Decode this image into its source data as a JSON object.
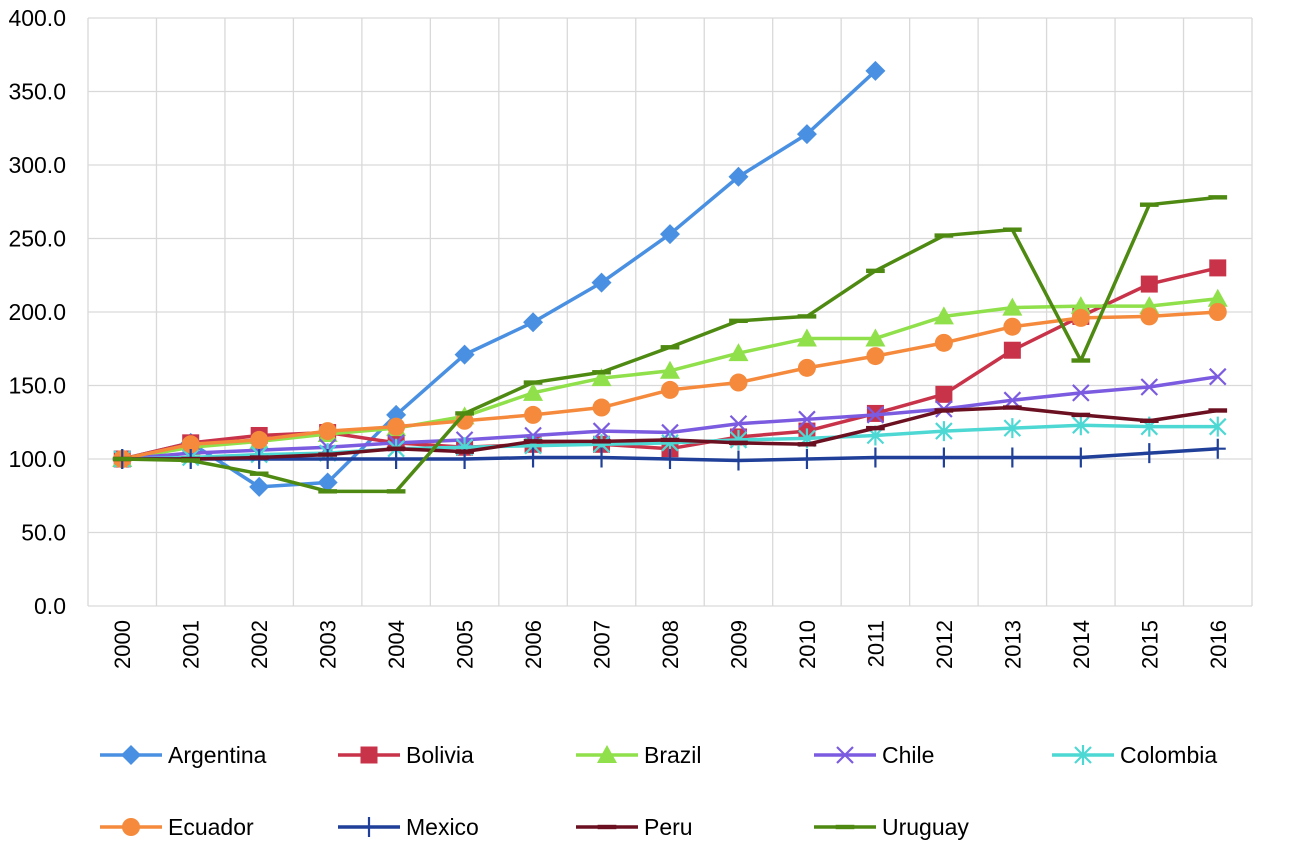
{
  "chart_data": {
    "type": "line",
    "title": "",
    "xlabel": "",
    "ylabel": "",
    "ylim": [
      0,
      400
    ],
    "yticks": [
      "0.0",
      "50.0",
      "100.0",
      "150.0",
      "200.0",
      "250.0",
      "300.0",
      "350.0",
      "400.0"
    ],
    "grid": true,
    "legend_position": "bottom",
    "categories": [
      "2000",
      "2001",
      "2002",
      "2003",
      "2004",
      "2005",
      "2006",
      "2007",
      "2008",
      "2009",
      "2010",
      "2011",
      "2012",
      "2013",
      "2014",
      "2015",
      "2016"
    ],
    "series": [
      {
        "name": "Argentina",
        "color": "#4A90E2",
        "marker": "diamond",
        "values": [
          100,
          111,
          81,
          84,
          130,
          171,
          193,
          220,
          253,
          292,
          321,
          364,
          null,
          null,
          null,
          null,
          null
        ]
      },
      {
        "name": "Bolivia",
        "color": "#C8334A",
        "marker": "square",
        "values": [
          100,
          111,
          116,
          118,
          111,
          108,
          110,
          110,
          107,
          115,
          119,
          131,
          144,
          174,
          197,
          219,
          230
        ]
      },
      {
        "name": "Brazil",
        "color": "#8FE04A",
        "marker": "triangle",
        "values": [
          100,
          108,
          112,
          117,
          121,
          129,
          145,
          155,
          160,
          172,
          182,
          182,
          197,
          203,
          204,
          204,
          209
        ]
      },
      {
        "name": "Chile",
        "color": "#7B5BE0",
        "marker": "x",
        "values": [
          100,
          104,
          106,
          108,
          111,
          113,
          116,
          119,
          118,
          124,
          127,
          130,
          134,
          140,
          145,
          149,
          156
        ]
      },
      {
        "name": "Colombia",
        "color": "#4ED8D4",
        "marker": "asterisk",
        "values": [
          100,
          101,
          103,
          104,
          107,
          108,
          109,
          110,
          111,
          113,
          114,
          116,
          119,
          121,
          123,
          122,
          122
        ]
      },
      {
        "name": "Ecuador",
        "color": "#F58A3C",
        "marker": "circle",
        "values": [
          100,
          110,
          113,
          119,
          122,
          126,
          130,
          135,
          147,
          152,
          162,
          170,
          179,
          190,
          196,
          197,
          200
        ]
      },
      {
        "name": "Mexico",
        "color": "#1F3F99",
        "marker": "plus",
        "values": [
          100,
          100,
          100,
          100,
          100,
          100,
          101,
          101,
          100,
          99,
          100,
          101,
          101,
          101,
          101,
          104,
          107
        ]
      },
      {
        "name": "Peru",
        "color": "#6A1020",
        "marker": "dash",
        "values": [
          100,
          100,
          101,
          103,
          107,
          105,
          112,
          112,
          113,
          111,
          110,
          121,
          133,
          135,
          130,
          126,
          133
        ]
      },
      {
        "name": "Uruguay",
        "color": "#4E8A12",
        "marker": "dash",
        "values": [
          100,
          99,
          90,
          78,
          78,
          131,
          152,
          159,
          176,
          194,
          197,
          228,
          252,
          256,
          167,
          273,
          278
        ]
      }
    ]
  }
}
